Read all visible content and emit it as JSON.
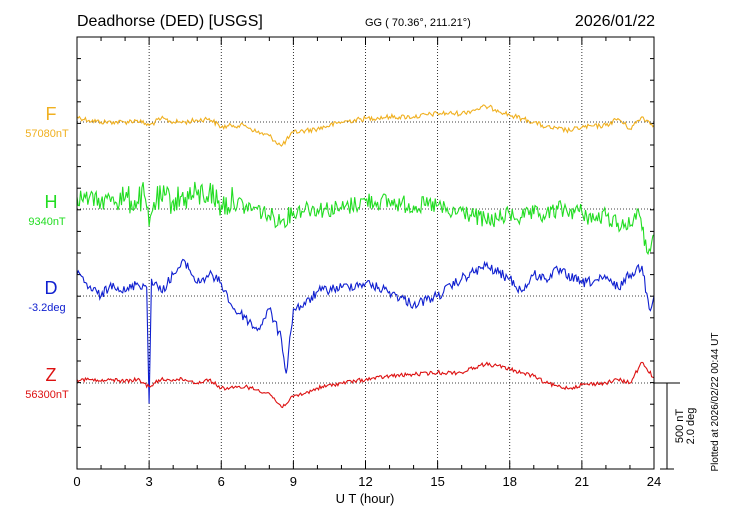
{
  "chart_data": {
    "type": "line",
    "title": "Deadhorse (DED)  [USGS]",
    "coords": "GG ( 70.36°, 211.21°)",
    "date": "2026/01/22",
    "plotted_note": "Plotted at 2026/02/22 00:44 UT",
    "xlabel": "U T (hour)",
    "xlim": [
      0,
      24
    ],
    "x_ticks": [
      "0",
      "3",
      "6",
      "9",
      "12",
      "15",
      "18",
      "21",
      "24"
    ],
    "grid": true,
    "scale": {
      "nt": "500 nT",
      "deg": "2.0 deg"
    },
    "series": [
      {
        "name": "F",
        "baseline": "57080nT",
        "color": "#f0b020",
        "x": [
          0,
          0.5,
          1,
          1.5,
          2,
          2.5,
          3,
          3.5,
          4,
          4.5,
          5,
          5.5,
          6,
          6.5,
          7,
          7.5,
          8,
          8.5,
          9,
          9.5,
          10,
          11,
          12,
          13,
          14,
          15,
          16,
          16.5,
          17,
          17.5,
          18,
          18.5,
          19,
          19.5,
          20,
          20.5,
          21,
          22,
          22.5,
          23,
          23.5,
          24
        ],
        "values": [
          30,
          10,
          0,
          0,
          0,
          10,
          -20,
          20,
          0,
          0,
          10,
          20,
          -30,
          -20,
          -20,
          -60,
          -80,
          -140,
          -60,
          -50,
          -40,
          0,
          20,
          30,
          30,
          50,
          50,
          70,
          90,
          70,
          40,
          20,
          0,
          -30,
          -40,
          -50,
          -30,
          -20,
          20,
          -40,
          30,
          -20
        ]
      },
      {
        "name": "H",
        "baseline": "9340nT",
        "color": "#22dd22",
        "x": [
          0,
          0.5,
          1,
          1.5,
          2,
          2.5,
          2.8,
          3,
          3.2,
          3.5,
          4,
          4.5,
          5,
          5.5,
          6,
          6.5,
          7,
          7.5,
          8,
          8.5,
          9,
          9.5,
          10,
          11,
          12,
          13,
          14,
          15,
          15.5,
          16,
          16.5,
          17,
          17.5,
          18,
          18.5,
          19,
          19.5,
          20,
          20.5,
          21,
          21.5,
          22,
          22.5,
          23,
          23.3,
          23.5,
          23.7,
          24
        ],
        "values": [
          70,
          60,
          40,
          70,
          60,
          40,
          80,
          -100,
          40,
          60,
          50,
          70,
          80,
          100,
          20,
          50,
          10,
          0,
          -40,
          -70,
          -20,
          10,
          0,
          0,
          50,
          40,
          20,
          20,
          -30,
          -10,
          -40,
          -70,
          -60,
          -30,
          -50,
          -30,
          -40,
          0,
          -10,
          -20,
          -60,
          -40,
          -80,
          -100,
          0,
          -120,
          -250,
          -150
        ]
      },
      {
        "name": "D",
        "baseline": "-3.2deg",
        "color": "#1020d0",
        "x": [
          0,
          0.5,
          1,
          1.5,
          2,
          2.5,
          2.9,
          3,
          3.1,
          3.5,
          4,
          4.5,
          5,
          5.5,
          6,
          6.5,
          7,
          7.5,
          8,
          8.5,
          8.7,
          9,
          9.5,
          10,
          11,
          12,
          13,
          14,
          15,
          16,
          17,
          18,
          18.5,
          19,
          19.5,
          20,
          21,
          22,
          22.5,
          23,
          23.5,
          23.8,
          24
        ],
        "values": [
          0.5,
          0.2,
          0,
          0.3,
          0.1,
          0.3,
          0.2,
          -2.5,
          0.4,
          0.1,
          0.5,
          0.8,
          0.3,
          0.5,
          0.3,
          -0.3,
          -0.5,
          -0.8,
          -0.3,
          -1.0,
          -1.8,
          -0.3,
          -0.2,
          0.1,
          0.2,
          0.3,
          0.1,
          -0.2,
          0,
          0.4,
          0.7,
          0.4,
          0.1,
          0.5,
          0.4,
          0.6,
          0.3,
          0.4,
          0.2,
          0.5,
          0.7,
          -0.3,
          0
        ]
      },
      {
        "name": "Z",
        "baseline": "56300nT",
        "color": "#dd1111",
        "x": [
          0,
          0.5,
          1,
          1.5,
          2,
          2.5,
          3,
          3.5,
          4,
          4.5,
          5,
          5.5,
          6,
          6.5,
          7,
          7.5,
          8,
          8.5,
          9,
          9.5,
          10,
          11,
          12,
          13,
          14,
          15,
          16,
          16.5,
          17,
          17.5,
          18,
          18.5,
          19,
          19.5,
          20,
          20.5,
          21,
          22,
          22.5,
          23,
          23.5,
          24
        ],
        "values": [
          20,
          20,
          10,
          20,
          10,
          20,
          -20,
          20,
          20,
          20,
          0,
          20,
          -30,
          -30,
          -20,
          -40,
          -60,
          -140,
          -80,
          -60,
          -30,
          0,
          20,
          40,
          50,
          60,
          60,
          90,
          110,
          100,
          80,
          60,
          40,
          0,
          -20,
          -30,
          -10,
          0,
          20,
          0,
          120,
          30
        ]
      }
    ]
  }
}
